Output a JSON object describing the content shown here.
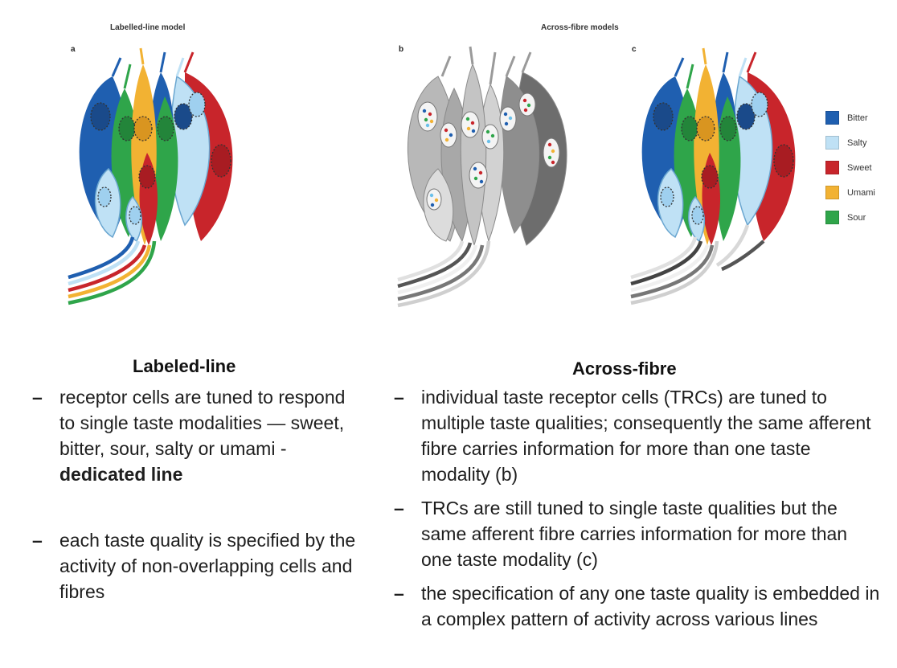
{
  "figure": {
    "title_left": "Labelled-line model",
    "title_right": "Across-fibre models",
    "panels": [
      "a",
      "b",
      "c"
    ],
    "legend": [
      {
        "label": "Bitter",
        "color": "#1f5fb0"
      },
      {
        "label": "Salty",
        "color": "#bfe1f5"
      },
      {
        "label": "Sweet",
        "color": "#c8252b"
      },
      {
        "label": "Umami",
        "color": "#f2b233"
      },
      {
        "label": "Sour",
        "color": "#2fa54a"
      }
    ]
  },
  "left": {
    "heading": "Labeled-line",
    "bullets": [
      {
        "text": "receptor cells are tuned to respond to single taste modalities — sweet, bitter, sour, salty or umami -",
        "bold": "dedicated line"
      },
      {
        "text": "each taste quality is specified by the activity of non-overlapping cells and fibres"
      }
    ]
  },
  "right": {
    "heading": "Across-fibre",
    "bullets": [
      {
        "text": "individual taste receptor cells (TRCs) are tuned to multiple taste qualities; consequently the same afferent fibre carries information for more than one taste modality (b)"
      },
      {
        "text": "TRCs are still tuned to single taste qualities but the same afferent fibre carries information for more than one taste modality (c)"
      },
      {
        "text": "the specification of any one taste quality is embedded in a complex pattern of activity across various lines"
      }
    ]
  },
  "dash_glyph": "–"
}
